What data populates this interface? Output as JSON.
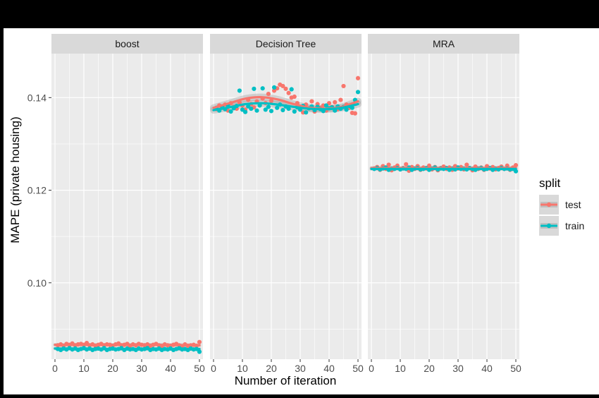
{
  "chart_data": {
    "type": "scatter",
    "subtype": "faceted scatter with smoothed trend lines",
    "xlabel": "Number of iteration",
    "ylabel": "MAPE (private housing)",
    "xlim": [
      0,
      50
    ],
    "ylim": [
      0.0835,
      0.1495
    ],
    "x_ticks": [
      0,
      10,
      20,
      30,
      40,
      50
    ],
    "x_tick_labels": [
      "0",
      "10",
      "20",
      "30",
      "40",
      "50"
    ],
    "y_ticks": [
      0.1,
      0.12,
      0.14
    ],
    "y_tick_labels": [
      "0.10",
      "0.12",
      "0.14"
    ],
    "grid": true,
    "legend": {
      "title": "split",
      "position": "right",
      "entries": [
        {
          "name": "test",
          "color": "#F8766D"
        },
        {
          "name": "train",
          "color": "#00BFC4"
        }
      ]
    },
    "colors": {
      "panel_bg": "#EBEBEB",
      "strip_bg": "#D9D9D9",
      "grid": "#FFFFFF",
      "ribbon": "#999999",
      "test": "#F8766D",
      "train": "#00BFC4"
    },
    "facets": [
      {
        "label": "boost",
        "series": [
          {
            "name": "test",
            "x": [
              1,
              2,
              3,
              4,
              5,
              6,
              7,
              8,
              9,
              10,
              11,
              12,
              13,
              14,
              15,
              16,
              17,
              18,
              19,
              20,
              21,
              22,
              23,
              24,
              25,
              26,
              27,
              28,
              29,
              30,
              31,
              32,
              33,
              34,
              35,
              36,
              37,
              38,
              39,
              40,
              41,
              42,
              43,
              44,
              45,
              46,
              47,
              48,
              49,
              50
            ],
            "y": [
              0.0865,
              0.0867,
              0.0864,
              0.0868,
              0.0866,
              0.0869,
              0.0865,
              0.0867,
              0.0868,
              0.0866,
              0.087,
              0.0865,
              0.0867,
              0.0864,
              0.0866,
              0.0868,
              0.0865,
              0.0867,
              0.0866,
              0.0864,
              0.0867,
              0.0869,
              0.0865,
              0.0866,
              0.0868,
              0.0864,
              0.0867,
              0.0865,
              0.0868,
              0.0866,
              0.0865,
              0.0867,
              0.0864,
              0.0866,
              0.0868,
              0.0865,
              0.0863,
              0.0867,
              0.0865,
              0.0864,
              0.0866,
              0.0868,
              0.0865,
              0.0863,
              0.0867,
              0.0864,
              0.0865,
              0.0866,
              0.0864,
              0.0872
            ],
            "trend": [
              0.0866,
              0.0866,
              0.0866,
              0.0865
            ]
          },
          {
            "name": "train",
            "x": [
              1,
              2,
              3,
              4,
              5,
              6,
              7,
              8,
              9,
              10,
              11,
              12,
              13,
              14,
              15,
              16,
              17,
              18,
              19,
              20,
              21,
              22,
              23,
              24,
              25,
              26,
              27,
              28,
              29,
              30,
              31,
              32,
              33,
              34,
              35,
              36,
              37,
              38,
              39,
              40,
              41,
              42,
              43,
              44,
              45,
              46,
              47,
              48,
              49,
              50
            ],
            "y": [
              0.0857,
              0.0855,
              0.0858,
              0.0856,
              0.0859,
              0.0856,
              0.0858,
              0.0855,
              0.0857,
              0.0859,
              0.0856,
              0.0858,
              0.0855,
              0.0857,
              0.0858,
              0.0856,
              0.0859,
              0.0855,
              0.0857,
              0.0858,
              0.0856,
              0.0857,
              0.0859,
              0.0855,
              0.0858,
              0.0856,
              0.0857,
              0.0855,
              0.0858,
              0.0856,
              0.0857,
              0.0859,
              0.0855,
              0.0857,
              0.0856,
              0.0858,
              0.0855,
              0.0857,
              0.0856,
              0.0858,
              0.0855,
              0.0857,
              0.0859,
              0.0856,
              0.0857,
              0.0855,
              0.0858,
              0.0856,
              0.0857,
              0.0851
            ],
            "trend": [
              0.0858,
              0.0857,
              0.0857,
              0.0857
            ]
          }
        ]
      },
      {
        "label": "Decision Tree",
        "series": [
          {
            "name": "test",
            "x": [
              1,
              2,
              3,
              4,
              5,
              6,
              7,
              8,
              9,
              10,
              11,
              12,
              13,
              14,
              15,
              16,
              17,
              18,
              19,
              20,
              21,
              22,
              23,
              24,
              25,
              26,
              27,
              28,
              29,
              30,
              31,
              32,
              33,
              34,
              35,
              36,
              37,
              38,
              39,
              40,
              41,
              42,
              43,
              44,
              45,
              46,
              47,
              48,
              49,
              50
            ],
            "y": [
              0.1375,
              0.1383,
              0.1378,
              0.1385,
              0.1372,
              0.1388,
              0.138,
              0.1376,
              0.139,
              0.1383,
              0.1374,
              0.1395,
              0.1386,
              0.1379,
              0.1392,
              0.1384,
              0.1398,
              0.1388,
              0.1408,
              0.1393,
              0.1415,
              0.142,
              0.1428,
              0.1425,
              0.1419,
              0.141,
              0.14,
              0.1402,
              0.1388,
              0.138,
              0.1368,
              0.1385,
              0.1377,
              0.1392,
              0.137,
              0.1386,
              0.1378,
              0.1383,
              0.1372,
              0.1388,
              0.138,
              0.139,
              0.1375,
              0.1395,
              0.1425,
              0.1385,
              0.1378,
              0.1367,
              0.1366,
              0.1442
            ],
            "trend": [
              0.1378,
              0.1388,
              0.1398,
              0.1401,
              0.1396,
              0.1386,
              0.1378,
              0.1376,
              0.138,
              0.1392
            ]
          },
          {
            "name": "train",
            "x": [
              1,
              2,
              3,
              4,
              5,
              6,
              7,
              8,
              9,
              10,
              11,
              12,
              13,
              14,
              15,
              16,
              17,
              18,
              19,
              20,
              21,
              22,
              23,
              24,
              25,
              26,
              27,
              28,
              29,
              30,
              31,
              32,
              33,
              34,
              35,
              36,
              37,
              38,
              39,
              40,
              41,
              42,
              43,
              44,
              45,
              46,
              47,
              48,
              49,
              50
            ],
            "y": [
              0.1378,
              0.1372,
              0.1381,
              0.1375,
              0.1383,
              0.137,
              0.1377,
              0.1382,
              0.1415,
              0.1374,
              0.1369,
              0.1381,
              0.1376,
              0.1419,
              0.1372,
              0.1383,
              0.142,
              0.1374,
              0.138,
              0.1371,
              0.1422,
              0.1378,
              0.1385,
              0.1373,
              0.1381,
              0.1376,
              0.1418,
              0.137,
              0.1379,
              0.1374,
              0.1382,
              0.1368,
              0.1377,
              0.1381,
              0.1373,
              0.138,
              0.1375,
              0.1371,
              0.1383,
              0.1377,
              0.1379,
              0.1372,
              0.1381,
              0.1376,
              0.138,
              0.1374,
              0.1382,
              0.1378,
              0.1395,
              0.1412
            ],
            "trend": [
              0.1373,
              0.1379,
              0.1386,
              0.1388,
              0.1385,
              0.138,
              0.1376,
              0.1375,
              0.1378,
              0.1386
            ]
          }
        ]
      },
      {
        "label": "MRA",
        "series": [
          {
            "name": "test",
            "x": [
              1,
              2,
              3,
              4,
              5,
              6,
              7,
              8,
              9,
              10,
              11,
              12,
              13,
              14,
              15,
              16,
              17,
              18,
              19,
              20,
              21,
              22,
              23,
              24,
              25,
              26,
              27,
              28,
              29,
              30,
              31,
              32,
              33,
              34,
              35,
              36,
              37,
              38,
              39,
              40,
              41,
              42,
              43,
              44,
              45,
              46,
              47,
              48,
              49,
              50
            ],
            "y": [
              0.1247,
              0.125,
              0.1244,
              0.1252,
              0.1246,
              0.1255,
              0.1243,
              0.1249,
              0.1253,
              0.1245,
              0.1248,
              0.1256,
              0.1242,
              0.125,
              0.1246,
              0.1252,
              0.1244,
              0.1249,
              0.1247,
              0.1253,
              0.1245,
              0.125,
              0.1243,
              0.1248,
              0.1251,
              0.1246,
              0.1249,
              0.1244,
              0.1252,
              0.1247,
              0.125,
              0.1245,
              0.1255,
              0.1248,
              0.1243,
              0.1251,
              0.1246,
              0.1249,
              0.1244,
              0.1252,
              0.1247,
              0.125,
              0.1245,
              0.1248,
              0.1251,
              0.1246,
              0.1253,
              0.1244,
              0.1249,
              0.1254
            ],
            "trend": [
              0.1248,
              0.1248,
              0.1248,
              0.1248
            ]
          },
          {
            "name": "train",
            "x": [
              1,
              2,
              3,
              4,
              5,
              6,
              7,
              8,
              9,
              10,
              11,
              12,
              13,
              14,
              15,
              16,
              17,
              18,
              19,
              20,
              21,
              22,
              23,
              24,
              25,
              26,
              27,
              28,
              29,
              30,
              31,
              32,
              33,
              34,
              35,
              36,
              37,
              38,
              39,
              40,
              41,
              42,
              43,
              44,
              45,
              46,
              47,
              48,
              49,
              50
            ],
            "y": [
              0.1246,
              0.1248,
              0.1245,
              0.1247,
              0.1249,
              0.1244,
              0.1247,
              0.1246,
              0.1248,
              0.1245,
              0.1247,
              0.1246,
              0.1249,
              0.1244,
              0.1247,
              0.1248,
              0.1245,
              0.1246,
              0.1248,
              0.1244,
              0.1247,
              0.1249,
              0.1245,
              0.1247,
              0.1246,
              0.1248,
              0.1244,
              0.1247,
              0.1245,
              0.1249,
              0.1246,
              0.1247,
              0.1245,
              0.1248,
              0.1246,
              0.1244,
              0.1247,
              0.1248,
              0.1245,
              0.1246,
              0.1248,
              0.1244,
              0.1247,
              0.1245,
              0.1248,
              0.1246,
              0.1247,
              0.1245,
              0.1246,
              0.1241
            ],
            "trend": [
              0.1246,
              0.1246,
              0.1246,
              0.1246
            ]
          }
        ]
      }
    ]
  }
}
